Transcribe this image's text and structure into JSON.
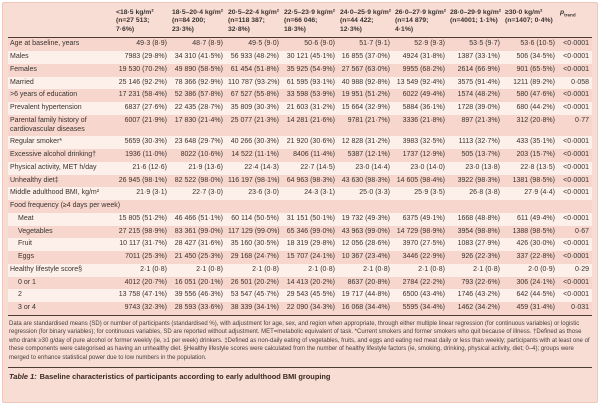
{
  "table": {
    "caption_label": "Table 1:",
    "caption_text": "Baseline characteristics of participants according to early adulthood BMI grouping",
    "p_header": {
      "symbol": "p",
      "subscript": "trend"
    },
    "columns": [
      "<18·5 kg/m² (n=27 513; 7·6%)",
      "18·5–20·4 kg/m² (n=84 200; 23·3%)",
      "20·5–22·4 kg/m² (n=118 387; 32·8%)",
      "22·5–23·9 kg/m² (n=66 046; 18·3%)",
      "24·0–25·9 kg/m² (n=44 422; 12·3%)",
      "26·0–27·9 kg/m² (n=14 879; 4·1%)",
      "28·0–29·9 kg/m² (n=4001; 1·1%)",
      "≥30·0 kg/m² (n=1407; 0·4%)"
    ],
    "rows": [
      {
        "label": "Age at baseline, years",
        "indent": false,
        "section": false,
        "values": [
          "49·3 (8·9)",
          "48·7 (8·9)",
          "49·5 (9·0)",
          "50·6 (9·0)",
          "51·7 (9·1)",
          "52·9 (9·3)",
          "53·5 (9·7)",
          "53·6 (10·5)"
        ],
        "p": "<0·0001"
      },
      {
        "label": "Males",
        "indent": false,
        "section": false,
        "values": [
          "7983 (29·8%)",
          "34 310 (41·5%)",
          "56 933 (48·2%)",
          "30 121 (45·1%)",
          "16 855 (37·0%)",
          "4924 (31·8%)",
          "1387 (33·1%)",
          "506 (34·5%)"
        ],
        "p": "<0·0001"
      },
      {
        "label": "Females",
        "indent": false,
        "section": false,
        "values": [
          "19 530 (70·2%)",
          "49 890 (58·5%)",
          "61 454 (51·8%)",
          "35 925 (54·9%)",
          "27 567 (63·0%)",
          "9955 (68·2%)",
          "2614 (66·9%)",
          "901 (65·5%)"
        ],
        "p": "<0·0001"
      },
      {
        "label": "Married",
        "indent": false,
        "section": false,
        "values": [
          "25 146 (92·2%)",
          "78 366 (92·9%)",
          "110 787 (93·2%)",
          "61 595 (93·1%)",
          "40 988 (92·8%)",
          "13 549 (92·4%)",
          "3575 (91·4%)",
          "1211 (89·2%)"
        ],
        "p": "0·058"
      },
      {
        "label": ">6 years of education",
        "indent": false,
        "section": false,
        "values": [
          "17 231 (58·4%)",
          "52 386 (57·8%)",
          "67 527 (55·8%)",
          "33 598 (53·9%)",
          "19 951 (51·2%)",
          "6022 (49·4%)",
          "1574 (48·2%)",
          "580 (47·6%)"
        ],
        "p": "<0·0001"
      },
      {
        "label": "Prevalent hypertension",
        "indent": false,
        "section": false,
        "values": [
          "6837 (27·6%)",
          "22 435 (28·7%)",
          "35 809 (30·3%)",
          "21 603 (31·2%)",
          "15 664 (32·9%)",
          "5884 (36·1%)",
          "1728 (39·0%)",
          "680 (44·2%)"
        ],
        "p": "<0·0001"
      },
      {
        "label": "Parental family history of cardiovascular diseases",
        "indent": false,
        "section": false,
        "values": [
          "6007 (21·9%)",
          "17 830 (21·4%)",
          "25 077 (21·3%)",
          "14 281 (21·6%)",
          "9781 (21·7%)",
          "3336 (21·8%)",
          "897 (21·3%)",
          "312 (20·8%)"
        ],
        "p": "0·77"
      },
      {
        "label": "Regular smoker*",
        "indent": false,
        "section": false,
        "values": [
          "5659 (30·3%)",
          "23 648 (29·7%)",
          "40 266 (30·3%)",
          "21 920 (30·6%)",
          "12 828 (31·2%)",
          "3983 (32·5%)",
          "1113 (32·7%)",
          "433 (35·1%)"
        ],
        "p": "<0·0001"
      },
      {
        "label": "Excessive alcohol drinking†",
        "indent": false,
        "section": false,
        "values": [
          "1936 (11·0%)",
          "8022 (10·6%)",
          "14 522 (11·1%)",
          "8406 (11·4%)",
          "5387 (12·1%)",
          "1737 (12·9%)",
          "505 (13·7%)",
          "203 (15·7%)"
        ],
        "p": "<0·0001"
      },
      {
        "label": "Physical activity, MET h/day",
        "indent": false,
        "section": false,
        "values": [
          "21·6 (12·6)",
          "21·9 (13·6)",
          "22·4 (14·3)",
          "22·7 (14·5)",
          "23·0 (14·4)",
          "23·0 (14·0)",
          "23·0 (13·8)",
          "22·8 (13·5)"
        ],
        "p": "<0·0001"
      },
      {
        "label": "Unhealthy diet‡",
        "indent": false,
        "section": false,
        "values": [
          "26 945 (98·1%)",
          "82 522 (98·0%)",
          "116 197 (98·1%)",
          "64 963 (98·3%)",
          "43 630 (98·3%)",
          "14 605 (98·4%)",
          "3922 (98·3%)",
          "1381 (98·5%)"
        ],
        "p": "<0·0001"
      },
      {
        "label": "Middle adulthood BMI, kg/m²",
        "indent": false,
        "section": false,
        "values": [
          "21·9 (3·1)",
          "22·7 (3·0)",
          "23·6 (3·0)",
          "24·3 (3·1)",
          "25·0 (3·3)",
          "25·9 (3·5)",
          "26·8 (3·8)",
          "27·9 (4·4)"
        ],
        "p": "<0·0001"
      },
      {
        "label": "Food frequency (≥4 days per week)",
        "indent": false,
        "section": true,
        "values": [],
        "p": ""
      },
      {
        "label": "Meat",
        "indent": true,
        "section": false,
        "values": [
          "15 805 (51·2%)",
          "46 466 (51·1%)",
          "60 114 (50·5%)",
          "31 151 (50·1%)",
          "19 732 (49·3%)",
          "6375 (49·1%)",
          "1668 (48·8%)",
          "611 (49·4%)"
        ],
        "p": "<0·0001"
      },
      {
        "label": "Vegetables",
        "indent": true,
        "section": false,
        "values": [
          "27 215 (98·9%)",
          "83 361 (99·0%)",
          "117 129 (99·0%)",
          "65 346 (99·0%)",
          "43 963 (99·0%)",
          "14 729 (98·9%)",
          "3954 (98·8%)",
          "1388 (98·5%)"
        ],
        "p": "0·67"
      },
      {
        "label": "Fruit",
        "indent": true,
        "section": false,
        "values": [
          "10 117 (31·7%)",
          "28 427 (31·6%)",
          "35 160 (30·5%)",
          "18 319 (29·8%)",
          "12 056 (28·6%)",
          "3970 (27·5%)",
          "1083 (27·9%)",
          "426 (30·0%)"
        ],
        "p": "<0·0001"
      },
      {
        "label": "Eggs",
        "indent": true,
        "section": false,
        "values": [
          "7011 (25·3%)",
          "21 450 (25·3%)",
          "29 168 (24·7%)",
          "15 707 (24·1%)",
          "10 367 (23·4%)",
          "3446 (22·9%)",
          "926 (22·3%)",
          "337 (22·8%)"
        ],
        "p": "<0·0001"
      },
      {
        "label": "Healthy lifestyle score§",
        "indent": false,
        "section": false,
        "values": [
          "2·1 (0·8)",
          "2·1 (0·8)",
          "2·1 (0·8)",
          "2·1 (0·8)",
          "2·1 (0·8)",
          "2·1 (0·8)",
          "2·1 (0·8)",
          "2·0 (0·9)"
        ],
        "p": "0·29"
      },
      {
        "label": "0 or 1",
        "indent": true,
        "section": false,
        "values": [
          "4012 (20·7%)",
          "16 051 (20·1%)",
          "26 501 (20·2%)",
          "14 413 (20·2%)",
          "8637 (20·8%)",
          "2784 (22·2%)",
          "793 (22·6%)",
          "306 (24·1%)"
        ],
        "p": "<0·0001"
      },
      {
        "label": "2",
        "indent": true,
        "section": false,
        "values": [
          "13 758 (47·1%)",
          "39 556 (46·3%)",
          "53 547 (45·7%)",
          "29 543 (45·5%)",
          "19 717 (44·8%)",
          "6500 (43·4%)",
          "1746 (43·2%)",
          "642 (44·5%)"
        ],
        "p": "<0·0001"
      },
      {
        "label": "3 or 4",
        "indent": true,
        "section": false,
        "values": [
          "9743 (32·3%)",
          "28 593 (33·6%)",
          "38 339 (34·1%)",
          "22 090 (34·3%)",
          "16 068 (34·4%)",
          "5595 (34·4%)",
          "1462 (34·2%)",
          "459 (31·4%)"
        ],
        "p": "0·031"
      }
    ],
    "footnote": "Data are standardised means (SD) or number of participants (standardised %), with adjustment for age, sex, and region when appropriate, through either multiple linear regression (for continuous variables) or logistic regression (for binary variables); for continuous variables, SD are reported without adjustment. MET=metabolic equivalent of task. *Current smokers and former smokers who quit because of illness. †Defined as those who drank ≥30 g/day of pure alcohol or former weekly (ie, ≥1 per week) drinkers. ‡Defined as non-daily eating of vegetables, fruits, and eggs and eating red meat daily or less than weekly; participants with at least one of these components were categorised as having an unhealthy diet. §Healthy lifestyle scores were calculated from the number of healthy lifestyle factors (ie, smoking, drinking, physical activity, diet; 0–4); groups were merged to enhance statistical power due to low numbers in the population.",
    "colors": {
      "panel_background": "#f8ddd5",
      "pink_row": "#f6d6cd",
      "light_row": "#fdefe9",
      "rule": "#4e3b34",
      "text": "#3a332e"
    }
  }
}
